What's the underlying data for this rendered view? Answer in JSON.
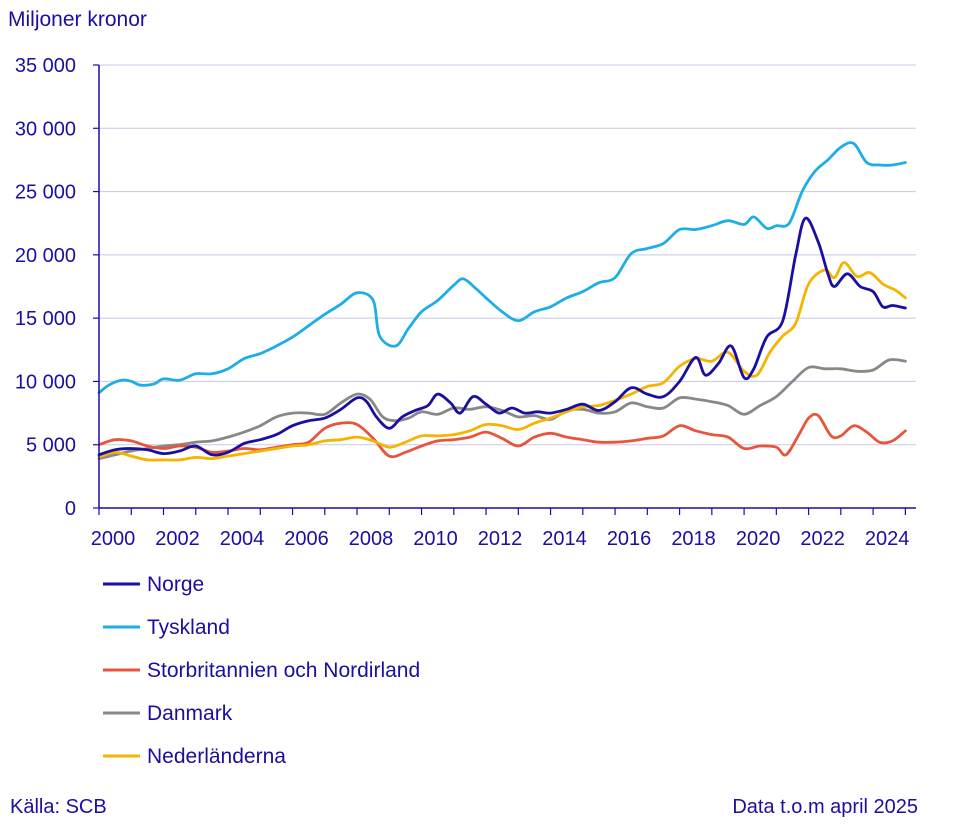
{
  "chart_data": {
    "type": "line",
    "ylabel": "Miljoner kronor",
    "ylim": [
      0,
      35000
    ],
    "yticks": [
      0,
      5000,
      10000,
      15000,
      20000,
      25000,
      30000,
      35000
    ],
    "ytick_labels": [
      "0",
      "5 000",
      "10 000",
      "15 000",
      "20 000",
      "25 000",
      "30 000",
      "35 000"
    ],
    "xlim": [
      2000,
      2025.33
    ],
    "xticks": [
      2000,
      2002,
      2004,
      2006,
      2008,
      2010,
      2012,
      2014,
      2016,
      2018,
      2020,
      2022,
      2024
    ],
    "xtick_labels": [
      "2000",
      "2002",
      "2004",
      "2006",
      "2008",
      "2010",
      "2012",
      "2014",
      "2016",
      "2018",
      "2020",
      "2022",
      "2024"
    ],
    "grid": "horizontal",
    "legend_position": "bottom",
    "source": "Källa: SCB",
    "note": "Data t.o.m april 2025",
    "series": [
      {
        "name": "Norge",
        "color": "#1a0fa0",
        "points": [
          [
            2000.0,
            4200
          ],
          [
            2000.5,
            4600
          ],
          [
            2001.0,
            4700
          ],
          [
            2001.5,
            4600
          ],
          [
            2002.0,
            4300
          ],
          [
            2002.5,
            4500
          ],
          [
            2003.0,
            4900
          ],
          [
            2003.5,
            4200
          ],
          [
            2004.0,
            4400
          ],
          [
            2004.5,
            5100
          ],
          [
            2005.0,
            5400
          ],
          [
            2005.5,
            5800
          ],
          [
            2006.0,
            6500
          ],
          [
            2006.5,
            6900
          ],
          [
            2007.0,
            7100
          ],
          [
            2007.5,
            7800
          ],
          [
            2008.0,
            8700
          ],
          [
            2008.3,
            8400
          ],
          [
            2008.6,
            7200
          ],
          [
            2009.0,
            6300
          ],
          [
            2009.4,
            7200
          ],
          [
            2009.8,
            7700
          ],
          [
            2010.2,
            8100
          ],
          [
            2010.5,
            9000
          ],
          [
            2010.9,
            8300
          ],
          [
            2011.2,
            7500
          ],
          [
            2011.6,
            8800
          ],
          [
            2012.0,
            8200
          ],
          [
            2012.4,
            7500
          ],
          [
            2012.8,
            7900
          ],
          [
            2013.2,
            7500
          ],
          [
            2013.6,
            7600
          ],
          [
            2014.0,
            7500
          ],
          [
            2014.5,
            7800
          ],
          [
            2015.0,
            8200
          ],
          [
            2015.5,
            7700
          ],
          [
            2016.0,
            8400
          ],
          [
            2016.5,
            9500
          ],
          [
            2017.0,
            9000
          ],
          [
            2017.5,
            8800
          ],
          [
            2018.0,
            10000
          ],
          [
            2018.5,
            11900
          ],
          [
            2018.8,
            10500
          ],
          [
            2019.2,
            11400
          ],
          [
            2019.6,
            12800
          ],
          [
            2020.0,
            10300
          ],
          [
            2020.3,
            11000
          ],
          [
            2020.7,
            13500
          ],
          [
            2021.2,
            14800
          ],
          [
            2021.6,
            20000
          ],
          [
            2021.9,
            22900
          ],
          [
            2022.3,
            21000
          ],
          [
            2022.6,
            18500
          ],
          [
            2022.8,
            17500
          ],
          [
            2023.2,
            18500
          ],
          [
            2023.6,
            17500
          ],
          [
            2024.0,
            17100
          ],
          [
            2024.3,
            15900
          ],
          [
            2024.6,
            16000
          ],
          [
            2025.0,
            15800
          ]
        ]
      },
      {
        "name": "Tyskland",
        "color": "#1eaee6",
        "points": [
          [
            2000.0,
            9100
          ],
          [
            2000.3,
            9700
          ],
          [
            2000.7,
            10100
          ],
          [
            2001.0,
            10000
          ],
          [
            2001.3,
            9700
          ],
          [
            2001.7,
            9800
          ],
          [
            2002.0,
            10200
          ],
          [
            2002.5,
            10100
          ],
          [
            2003.0,
            10600
          ],
          [
            2003.5,
            10600
          ],
          [
            2004.0,
            11000
          ],
          [
            2004.5,
            11800
          ],
          [
            2005.0,
            12200
          ],
          [
            2005.5,
            12800
          ],
          [
            2006.0,
            13500
          ],
          [
            2006.5,
            14400
          ],
          [
            2007.0,
            15300
          ],
          [
            2007.5,
            16100
          ],
          [
            2008.0,
            17000
          ],
          [
            2008.5,
            16400
          ],
          [
            2008.7,
            13600
          ],
          [
            2009.2,
            12800
          ],
          [
            2009.6,
            14200
          ],
          [
            2010.0,
            15500
          ],
          [
            2010.5,
            16400
          ],
          [
            2011.0,
            17600
          ],
          [
            2011.3,
            18100
          ],
          [
            2011.7,
            17300
          ],
          [
            2012.0,
            16600
          ],
          [
            2012.5,
            15500
          ],
          [
            2013.0,
            14800
          ],
          [
            2013.5,
            15500
          ],
          [
            2014.0,
            15900
          ],
          [
            2014.5,
            16600
          ],
          [
            2015.0,
            17100
          ],
          [
            2015.5,
            17800
          ],
          [
            2016.0,
            18200
          ],
          [
            2016.5,
            20100
          ],
          [
            2017.0,
            20500
          ],
          [
            2017.5,
            20900
          ],
          [
            2018.0,
            22000
          ],
          [
            2018.5,
            22000
          ],
          [
            2019.0,
            22300
          ],
          [
            2019.5,
            22700
          ],
          [
            2020.0,
            22400
          ],
          [
            2020.3,
            23000
          ],
          [
            2020.7,
            22100
          ],
          [
            2021.0,
            22300
          ],
          [
            2021.4,
            22500
          ],
          [
            2021.8,
            25000
          ],
          [
            2022.2,
            26600
          ],
          [
            2022.6,
            27500
          ],
          [
            2023.0,
            28500
          ],
          [
            2023.4,
            28800
          ],
          [
            2023.8,
            27300
          ],
          [
            2024.2,
            27100
          ],
          [
            2024.6,
            27100
          ],
          [
            2025.0,
            27300
          ]
        ]
      },
      {
        "name": "Storbritannien och Nordirland",
        "color": "#e8553d",
        "points": [
          [
            2000.0,
            5000
          ],
          [
            2000.5,
            5400
          ],
          [
            2001.0,
            5300
          ],
          [
            2001.5,
            4900
          ],
          [
            2002.0,
            4700
          ],
          [
            2002.5,
            4900
          ],
          [
            2003.0,
            4800
          ],
          [
            2003.5,
            4400
          ],
          [
            2004.0,
            4500
          ],
          [
            2004.5,
            4700
          ],
          [
            2005.0,
            4600
          ],
          [
            2005.5,
            4800
          ],
          [
            2006.0,
            5000
          ],
          [
            2006.5,
            5200
          ],
          [
            2007.0,
            6300
          ],
          [
            2007.5,
            6700
          ],
          [
            2008.0,
            6600
          ],
          [
            2008.5,
            5500
          ],
          [
            2009.0,
            4100
          ],
          [
            2009.5,
            4400
          ],
          [
            2010.0,
            4900
          ],
          [
            2010.5,
            5300
          ],
          [
            2011.0,
            5400
          ],
          [
            2011.5,
            5600
          ],
          [
            2012.0,
            6000
          ],
          [
            2012.5,
            5500
          ],
          [
            2013.0,
            4900
          ],
          [
            2013.5,
            5600
          ],
          [
            2014.0,
            5900
          ],
          [
            2014.5,
            5600
          ],
          [
            2015.0,
            5400
          ],
          [
            2015.5,
            5200
          ],
          [
            2016.0,
            5200
          ],
          [
            2016.5,
            5300
          ],
          [
            2017.0,
            5500
          ],
          [
            2017.5,
            5700
          ],
          [
            2018.0,
            6500
          ],
          [
            2018.5,
            6100
          ],
          [
            2019.0,
            5800
          ],
          [
            2019.5,
            5600
          ],
          [
            2020.0,
            4700
          ],
          [
            2020.5,
            4900
          ],
          [
            2021.0,
            4800
          ],
          [
            2021.3,
            4200
          ],
          [
            2021.7,
            5800
          ],
          [
            2022.0,
            7100
          ],
          [
            2022.3,
            7300
          ],
          [
            2022.7,
            5700
          ],
          [
            2023.0,
            5700
          ],
          [
            2023.4,
            6500
          ],
          [
            2023.8,
            6000
          ],
          [
            2024.2,
            5200
          ],
          [
            2024.6,
            5300
          ],
          [
            2025.0,
            6100
          ]
        ]
      },
      {
        "name": "Danmark",
        "color": "#888888",
        "points": [
          [
            2000.0,
            3900
          ],
          [
            2000.5,
            4200
          ],
          [
            2001.0,
            4500
          ],
          [
            2001.5,
            4700
          ],
          [
            2002.0,
            4900
          ],
          [
            2002.5,
            5000
          ],
          [
            2003.0,
            5200
          ],
          [
            2003.5,
            5300
          ],
          [
            2004.0,
            5600
          ],
          [
            2004.5,
            6000
          ],
          [
            2005.0,
            6500
          ],
          [
            2005.5,
            7200
          ],
          [
            2006.0,
            7500
          ],
          [
            2006.5,
            7500
          ],
          [
            2007.0,
            7400
          ],
          [
            2007.5,
            8300
          ],
          [
            2008.0,
            9000
          ],
          [
            2008.4,
            8600
          ],
          [
            2008.8,
            7200
          ],
          [
            2009.2,
            6900
          ],
          [
            2009.6,
            7100
          ],
          [
            2010.0,
            7600
          ],
          [
            2010.5,
            7400
          ],
          [
            2011.0,
            7900
          ],
          [
            2011.5,
            7800
          ],
          [
            2012.0,
            8000
          ],
          [
            2012.5,
            7700
          ],
          [
            2013.0,
            7200
          ],
          [
            2013.5,
            7300
          ],
          [
            2014.0,
            7000
          ],
          [
            2014.5,
            7700
          ],
          [
            2015.0,
            7800
          ],
          [
            2015.5,
            7500
          ],
          [
            2016.0,
            7600
          ],
          [
            2016.5,
            8300
          ],
          [
            2017.0,
            8000
          ],
          [
            2017.5,
            7900
          ],
          [
            2018.0,
            8700
          ],
          [
            2018.5,
            8600
          ],
          [
            2019.0,
            8400
          ],
          [
            2019.5,
            8100
          ],
          [
            2020.0,
            7400
          ],
          [
            2020.5,
            8100
          ],
          [
            2021.0,
            8800
          ],
          [
            2021.5,
            10000
          ],
          [
            2022.0,
            11100
          ],
          [
            2022.5,
            11000
          ],
          [
            2023.0,
            11000
          ],
          [
            2023.5,
            10800
          ],
          [
            2024.0,
            10900
          ],
          [
            2024.5,
            11700
          ],
          [
            2025.0,
            11600
          ]
        ]
      },
      {
        "name": "Nederländerna",
        "color": "#f5b400",
        "points": [
          [
            2000.0,
            4000
          ],
          [
            2000.5,
            4400
          ],
          [
            2001.0,
            4100
          ],
          [
            2001.5,
            3800
          ],
          [
            2002.0,
            3800
          ],
          [
            2002.5,
            3800
          ],
          [
            2003.0,
            4000
          ],
          [
            2003.5,
            3900
          ],
          [
            2004.0,
            4100
          ],
          [
            2004.5,
            4300
          ],
          [
            2005.0,
            4500
          ],
          [
            2005.5,
            4700
          ],
          [
            2006.0,
            4900
          ],
          [
            2006.5,
            5000
          ],
          [
            2007.0,
            5300
          ],
          [
            2007.5,
            5400
          ],
          [
            2008.0,
            5600
          ],
          [
            2008.5,
            5300
          ],
          [
            2009.0,
            4800
          ],
          [
            2009.5,
            5200
          ],
          [
            2010.0,
            5700
          ],
          [
            2010.5,
            5700
          ],
          [
            2011.0,
            5800
          ],
          [
            2011.5,
            6100
          ],
          [
            2012.0,
            6600
          ],
          [
            2012.5,
            6500
          ],
          [
            2013.0,
            6200
          ],
          [
            2013.5,
            6700
          ],
          [
            2014.0,
            7100
          ],
          [
            2014.5,
            7600
          ],
          [
            2015.0,
            8000
          ],
          [
            2015.5,
            8100
          ],
          [
            2016.0,
            8500
          ],
          [
            2016.5,
            9000
          ],
          [
            2017.0,
            9600
          ],
          [
            2017.5,
            9900
          ],
          [
            2018.0,
            11200
          ],
          [
            2018.5,
            11800
          ],
          [
            2019.0,
            11600
          ],
          [
            2019.5,
            12300
          ],
          [
            2020.0,
            10800
          ],
          [
            2020.4,
            10500
          ],
          [
            2020.8,
            12300
          ],
          [
            2021.2,
            13600
          ],
          [
            2021.6,
            14600
          ],
          [
            2022.0,
            17700
          ],
          [
            2022.5,
            18800
          ],
          [
            2022.8,
            18200
          ],
          [
            2023.1,
            19400
          ],
          [
            2023.5,
            18300
          ],
          [
            2023.9,
            18600
          ],
          [
            2024.3,
            17700
          ],
          [
            2024.7,
            17200
          ],
          [
            2025.0,
            16600
          ]
        ]
      }
    ]
  }
}
